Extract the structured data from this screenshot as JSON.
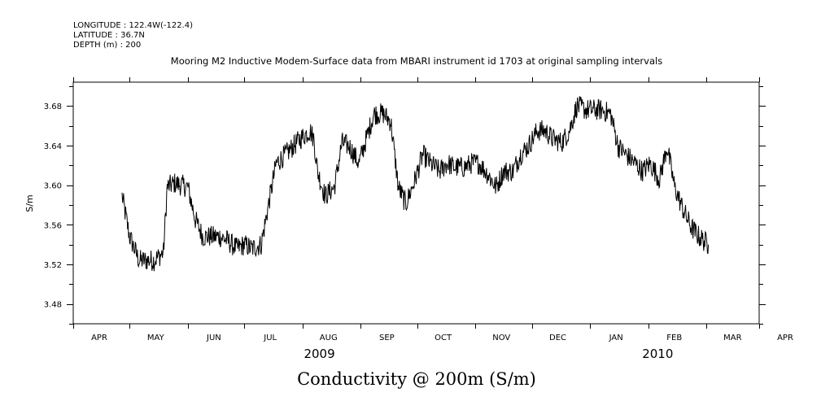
{
  "header": {
    "longitude": "LONGITUDE : 122.4W(-122.4)",
    "latitude": "LATITUDE : 36.7N",
    "depth": "DEPTH (m) : 200"
  },
  "chart_data": {
    "type": "line",
    "title": "Mooring M2 Inductive Modem-Surface data from MBARI instrument id 1703 at original sampling intervals",
    "xlabel": "Conductivity @ 200m (S/m)",
    "ylabel": "S/m",
    "x_units": "days since 2009-04-01",
    "xlim": [
      0,
      365
    ],
    "ylim": [
      3.46,
      3.704
    ],
    "yticks": [
      "3.48",
      "3.52",
      "3.56",
      "3.60",
      "3.64",
      "3.68"
    ],
    "ytick_values": [
      3.48,
      3.52,
      3.56,
      3.6,
      3.64,
      3.68
    ],
    "month_ticks": [
      0,
      30,
      61,
      91,
      122,
      153,
      183,
      214,
      244,
      275,
      306,
      337,
      365
    ],
    "month_labels": [
      "APR",
      "MAY",
      "JUN",
      "JUL",
      "AUG",
      "SEP",
      "OCT",
      "NOV",
      "DEC",
      "JAN",
      "FEB",
      "MAR",
      "APR"
    ],
    "year_labels": [
      {
        "label": "2009",
        "day": 131
      },
      {
        "label": "2010",
        "day": 311
      }
    ],
    "grid": false,
    "series": [
      {
        "name": "Conductivity",
        "x": [
          26,
          30,
          35,
          39,
          43,
          48,
          50,
          54,
          61,
          65,
          69,
          74,
          78,
          82,
          87,
          91,
          95,
          100,
          104,
          108,
          113,
          117,
          121,
          126,
          128,
          130,
          134,
          139,
          143,
          147,
          152,
          156,
          160,
          165,
          169,
          173,
          177,
          182,
          186,
          190,
          195,
          199,
          203,
          208,
          212,
          216,
          221,
          225,
          229,
          234,
          238,
          242,
          247,
          251,
          255,
          260,
          264,
          268,
          273,
          277,
          281,
          286,
          290,
          294,
          299,
          303,
          307,
          312,
          316,
          320,
          325,
          329,
          333,
          338
        ],
        "y": [
          3.589,
          3.548,
          3.524,
          3.524,
          3.524,
          3.532,
          3.598,
          3.602,
          3.598,
          3.565,
          3.548,
          3.548,
          3.548,
          3.544,
          3.536,
          3.54,
          3.536,
          3.54,
          3.581,
          3.622,
          3.631,
          3.639,
          3.647,
          3.655,
          3.647,
          3.614,
          3.589,
          3.598,
          3.643,
          3.639,
          3.622,
          3.647,
          3.672,
          3.672,
          3.664,
          3.598,
          3.581,
          3.606,
          3.631,
          3.622,
          3.614,
          3.622,
          3.618,
          3.618,
          3.622,
          3.622,
          3.61,
          3.598,
          3.614,
          3.614,
          3.631,
          3.639,
          3.655,
          3.655,
          3.647,
          3.643,
          3.655,
          3.68,
          3.676,
          3.676,
          3.676,
          3.672,
          3.639,
          3.631,
          3.622,
          3.614,
          3.622,
          3.606,
          3.639,
          3.598,
          3.573,
          3.557,
          3.548,
          3.54
        ]
      }
    ]
  }
}
